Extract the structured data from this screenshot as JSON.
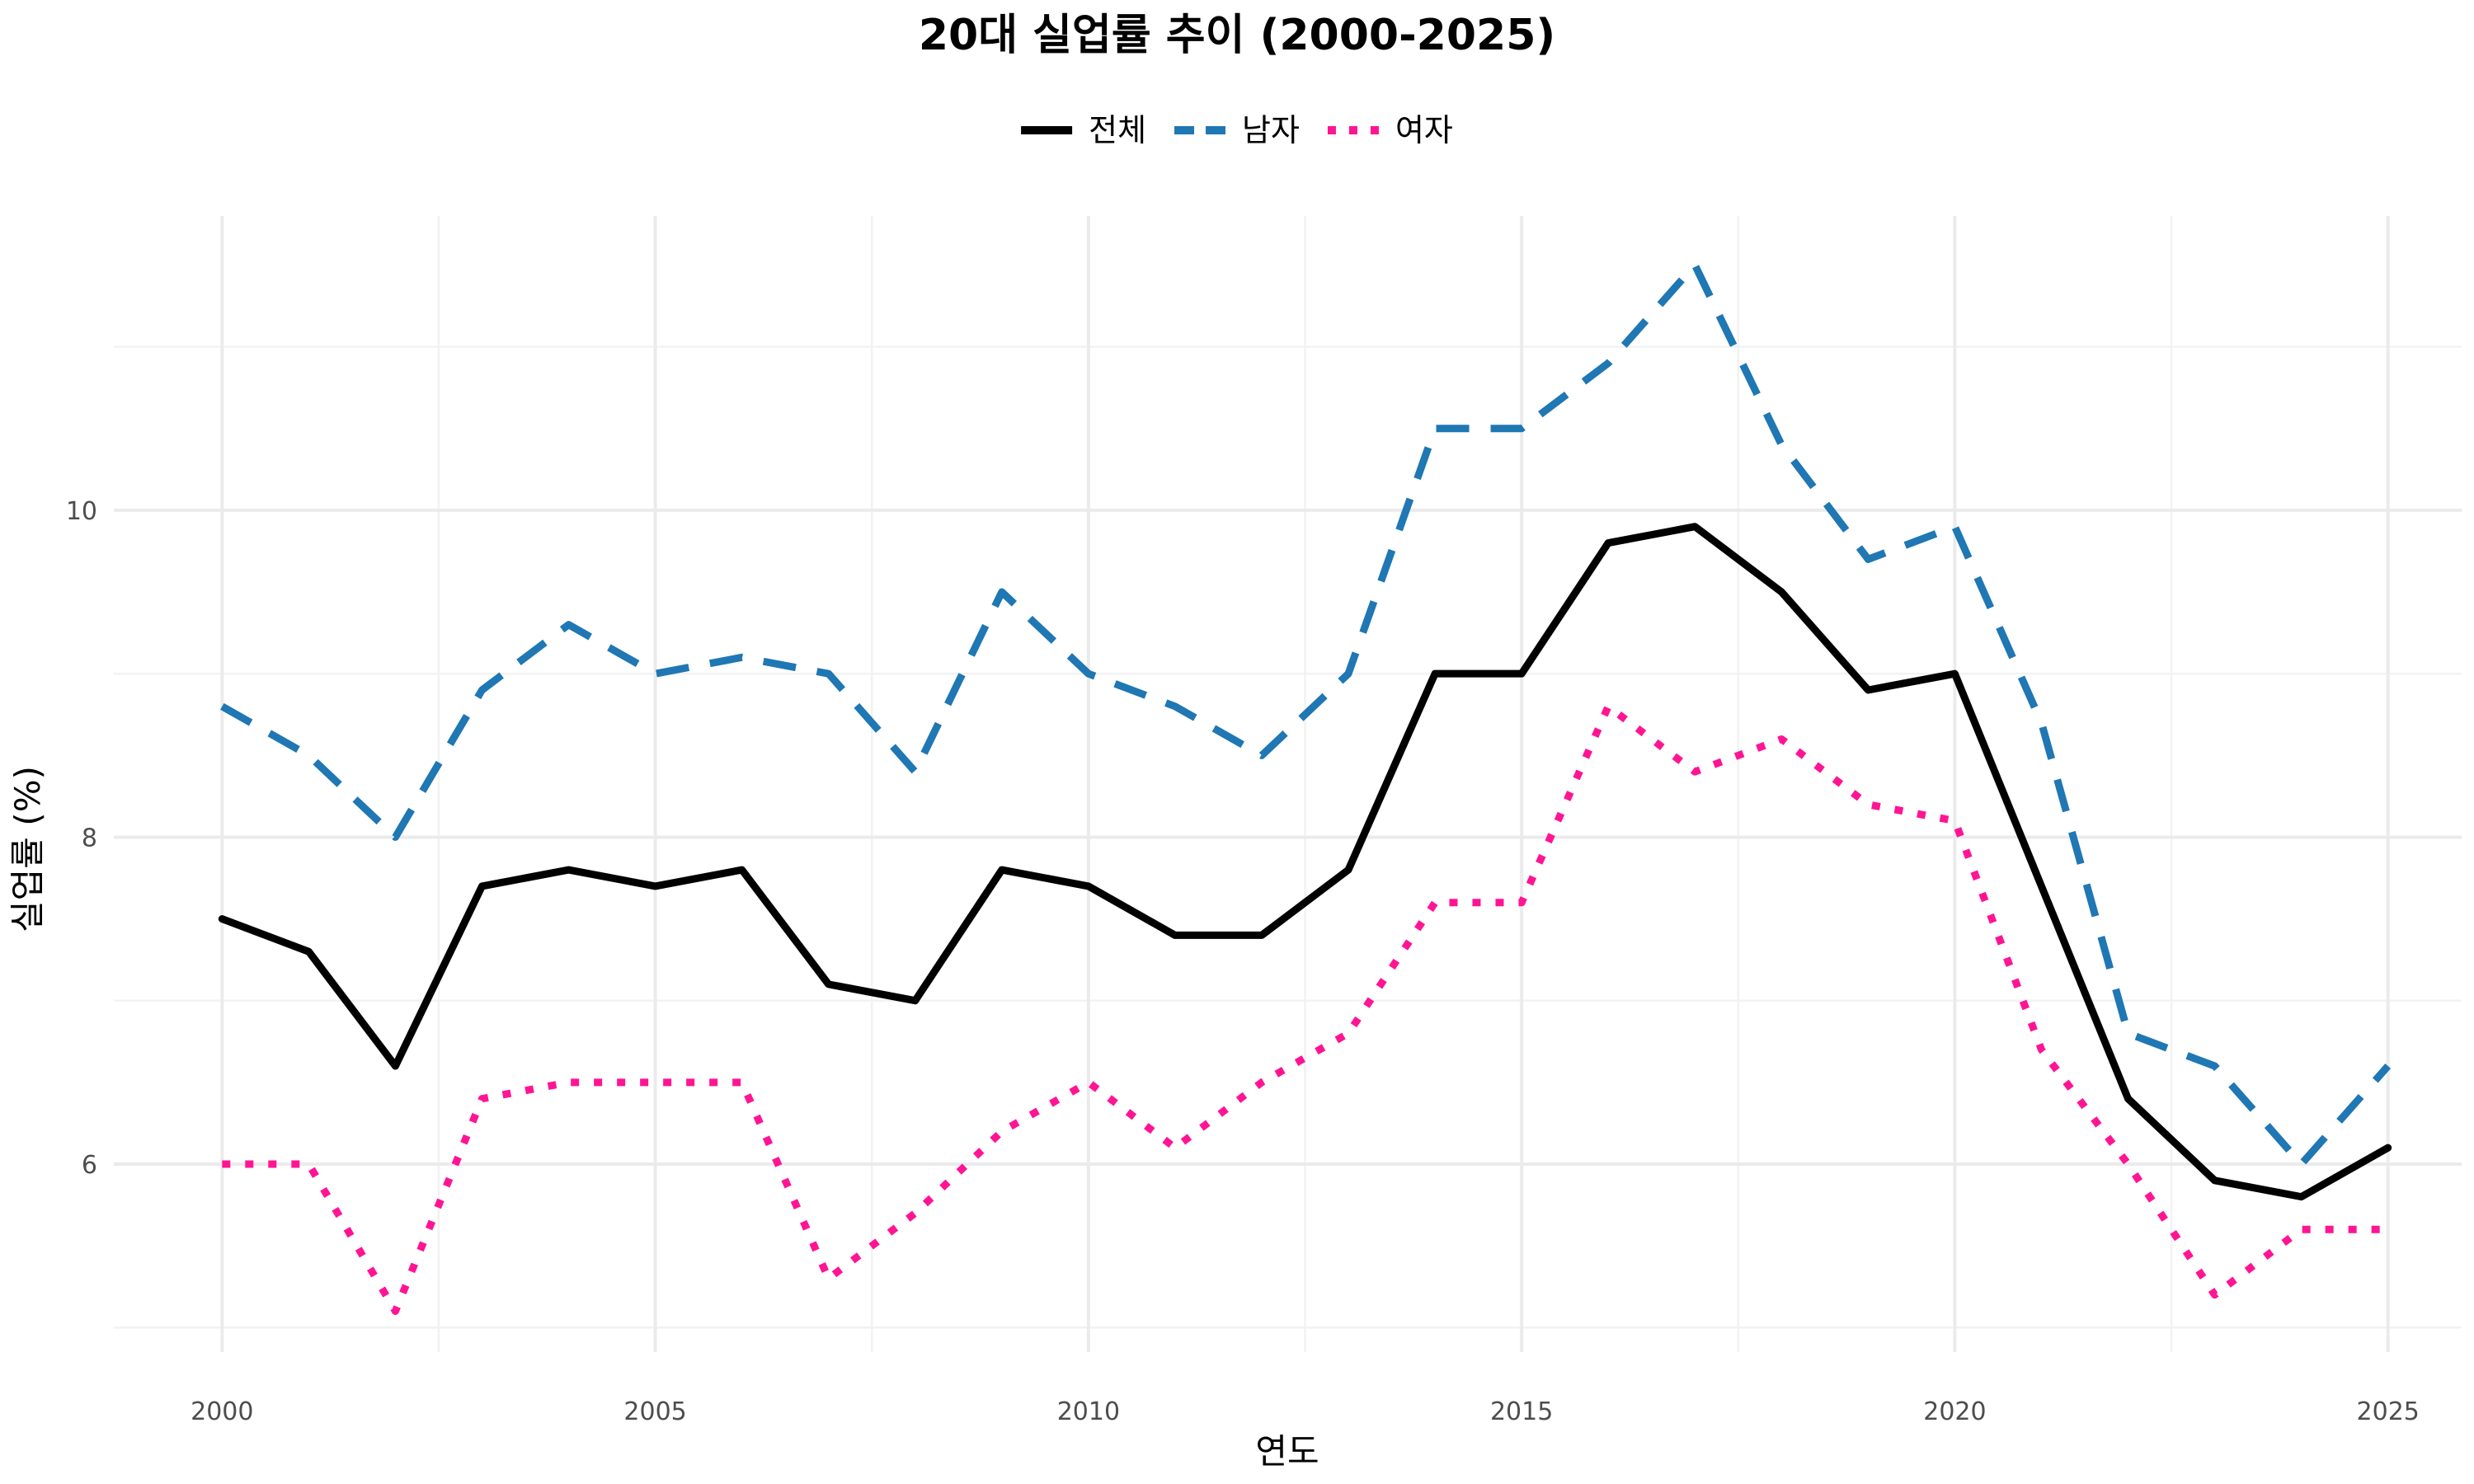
{
  "chart_data": {
    "type": "line",
    "title": "20대 실업률 추이 (2000-2025)",
    "xlabel": "연도",
    "ylabel": "실업률 (%)",
    "x": [
      2000,
      2001,
      2002,
      2003,
      2004,
      2005,
      2006,
      2007,
      2008,
      2009,
      2010,
      2011,
      2012,
      2013,
      2014,
      2015,
      2016,
      2017,
      2018,
      2019,
      2020,
      2021,
      2022,
      2023,
      2024,
      2025
    ],
    "xlim": [
      1998.75,
      2025.85
    ],
    "ylim": [
      4.85,
      11.8
    ],
    "x_ticks": [
      "2000",
      "2005",
      "2010",
      "2015",
      "2020",
      "2025"
    ],
    "y_ticks": [
      "6",
      "8",
      "10"
    ],
    "grid": true,
    "legend_position": "top",
    "series": [
      {
        "name": "전체",
        "color": "#000000",
        "dash": "solid",
        "values": [
          7.5,
          7.3,
          6.6,
          7.7,
          7.8,
          7.7,
          7.8,
          7.1,
          7.0,
          7.8,
          7.7,
          7.4,
          7.4,
          7.8,
          9.0,
          9.0,
          9.8,
          9.9,
          9.5,
          8.9,
          9.0,
          7.7,
          6.4,
          5.9,
          5.8,
          6.1
        ]
      },
      {
        "name": "남자",
        "color": "#1f77b4",
        "dash": "dashed",
        "values": [
          8.8,
          8.5,
          8.0,
          8.9,
          9.3,
          9.0,
          9.1,
          9.0,
          8.4,
          9.5,
          9.0,
          8.8,
          8.5,
          9.0,
          10.5,
          10.5,
          10.9,
          11.5,
          10.4,
          9.7,
          9.9,
          8.7,
          6.8,
          6.6,
          6.0,
          6.6
        ]
      },
      {
        "name": "여자",
        "color": "#ff1493",
        "dash": "dotted",
        "values": [
          6.0,
          6.0,
          5.1,
          6.4,
          6.5,
          6.5,
          6.5,
          5.3,
          5.7,
          6.2,
          6.5,
          6.1,
          6.5,
          6.8,
          7.6,
          7.6,
          8.8,
          8.4,
          8.6,
          8.2,
          8.1,
          6.7,
          6.0,
          5.2,
          5.6,
          5.6
        ]
      }
    ]
  }
}
